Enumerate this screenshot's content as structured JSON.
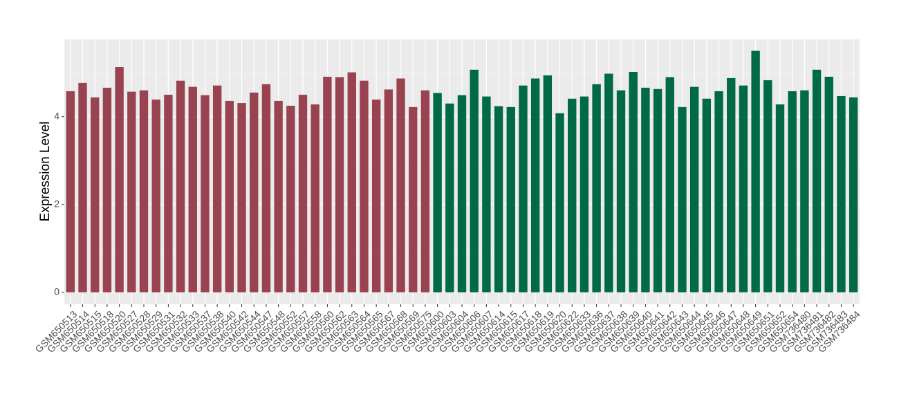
{
  "chart_data": {
    "type": "bar",
    "y_label": "Expression Level",
    "categories": [
      "GSM650513",
      "GSM650514",
      "GSM650515",
      "GSM650518",
      "GSM650520",
      "GSM650527",
      "GSM650528",
      "GSM650529",
      "GSM650531",
      "GSM650532",
      "GSM650533",
      "GSM650537",
      "GSM650538",
      "GSM650540",
      "GSM650542",
      "GSM650544",
      "GSM650547",
      "GSM650548",
      "GSM650552",
      "GSM650557",
      "GSM650558",
      "GSM650560",
      "GSM650562",
      "GSM650563",
      "GSM650564",
      "GSM650565",
      "GSM650567",
      "GSM650568",
      "GSM650569",
      "GSM650575",
      "GSM650600",
      "GSM650603",
      "GSM650604",
      "GSM650606",
      "GSM650607",
      "GSM650614",
      "GSM650615",
      "GSM650617",
      "GSM650618",
      "GSM650619",
      "GSM650620",
      "GSM650622",
      "GSM650633",
      "GSM650636",
      "GSM650637",
      "GSM650638",
      "GSM650639",
      "GSM650640",
      "GSM650641",
      "GSM650642",
      "GSM650643",
      "GSM650644",
      "GSM650645",
      "GSM650646",
      "GSM650647",
      "GSM650648",
      "GSM650649",
      "GSM650651",
      "GSM650652",
      "GSM650654",
      "GSM736480",
      "GSM736481",
      "GSM736482",
      "GSM736483",
      "GSM736484"
    ],
    "values": [
      4.58,
      4.77,
      4.44,
      4.66,
      5.13,
      4.57,
      4.6,
      4.39,
      4.5,
      4.82,
      4.68,
      4.49,
      4.71,
      4.36,
      4.31,
      4.55,
      4.74,
      4.36,
      4.25,
      4.5,
      4.28,
      4.91,
      4.9,
      5.01,
      4.82,
      4.39,
      4.62,
      4.87,
      4.22,
      4.6,
      4.54,
      4.3,
      4.49,
      5.07,
      4.46,
      4.24,
      4.22,
      4.71,
      4.87,
      4.94,
      4.08,
      4.41,
      4.46,
      4.74,
      4.98,
      4.6,
      5.02,
      4.66,
      4.63,
      4.9,
      4.22,
      4.68,
      4.41,
      4.58,
      4.88,
      4.71,
      5.5,
      4.83,
      4.28,
      4.58,
      4.6,
      5.07,
      4.91,
      4.47,
      4.44
    ],
    "colors": [
      "#994350",
      "#994350",
      "#994350",
      "#994350",
      "#994350",
      "#994350",
      "#994350",
      "#994350",
      "#994350",
      "#994350",
      "#994350",
      "#994350",
      "#994350",
      "#994350",
      "#994350",
      "#994350",
      "#994350",
      "#994350",
      "#994350",
      "#994350",
      "#994350",
      "#994350",
      "#994350",
      "#994350",
      "#994350",
      "#994350",
      "#994350",
      "#994350",
      "#994350",
      "#994350",
      "#006a45",
      "#006a45",
      "#006a45",
      "#006a45",
      "#006a45",
      "#006a45",
      "#006a45",
      "#006a45",
      "#006a45",
      "#006a45",
      "#006a45",
      "#006a45",
      "#006a45",
      "#006a45",
      "#006a45",
      "#006a45",
      "#006a45",
      "#006a45",
      "#006a45",
      "#006a45",
      "#006a45",
      "#006a45",
      "#006a45",
      "#006a45",
      "#006a45",
      "#006a45",
      "#006a45",
      "#006a45",
      "#006a45",
      "#006a45",
      "#006a45",
      "#006a45",
      "#006a45",
      "#006a45",
      "#006a45"
    ],
    "ylim": [
      -0.27,
      5.76
    ],
    "yticks": [
      0,
      2,
      4
    ],
    "grid": true
  }
}
